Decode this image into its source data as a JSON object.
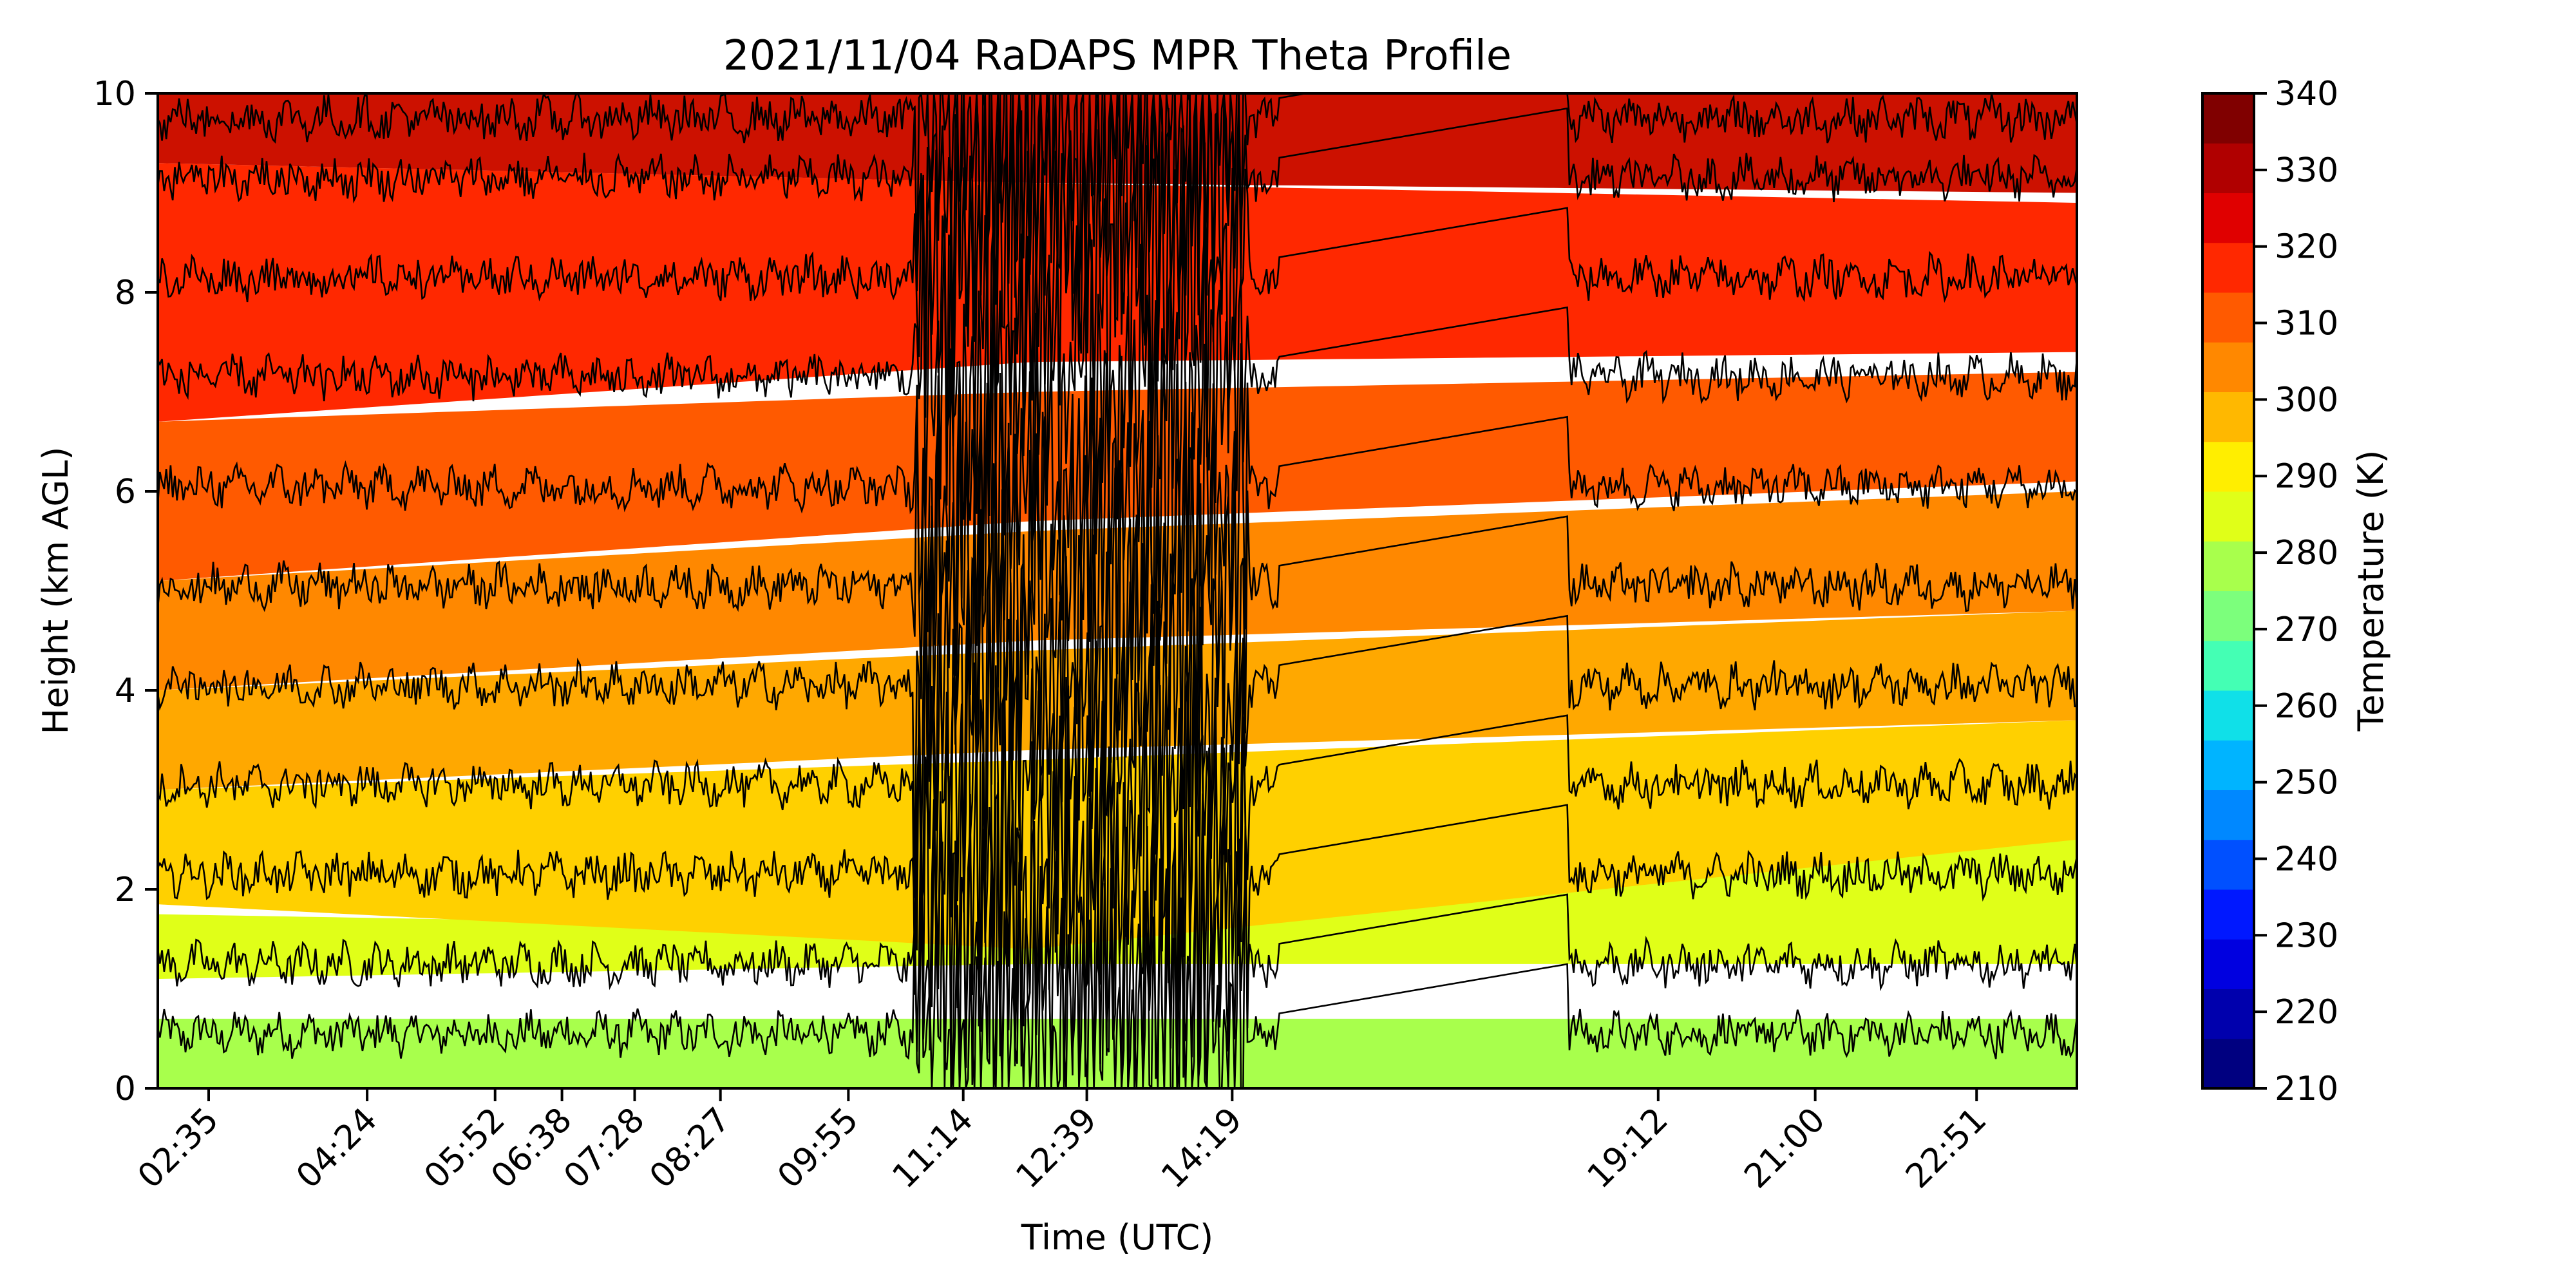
{
  "chart_data": {
    "type": "heatmap",
    "title": "2021/11/04 RaDAPS MPR Theta Profile",
    "xlabel": "Time (UTC)",
    "ylabel": "Height (km AGL)",
    "colorbar_label": "Temperature (K)",
    "xlim": [
      "02:00",
      "24:00"
    ],
    "ylim": [
      0,
      10
    ],
    "x_ticks": [
      "02:35",
      "04:24",
      "05:52",
      "06:38",
      "07:28",
      "08:27",
      "09:55",
      "11:14",
      "12:39",
      "14:19",
      "19:12",
      "21:00",
      "22:51"
    ],
    "y_ticks": [
      0,
      2,
      4,
      6,
      8,
      10
    ],
    "colorbar_range": [
      210,
      340
    ],
    "colorbar_ticks": [
      210,
      220,
      230,
      240,
      250,
      260,
      270,
      280,
      290,
      300,
      310,
      320,
      330,
      340
    ],
    "colorbar_colors": [
      "#000080",
      "#0000ad",
      "#0000e0",
      "#0018ff",
      "#0050ff",
      "#0088ff",
      "#00b4ff",
      "#10e0e8",
      "#44ffb4",
      "#7cff7c",
      "#a8ff4c",
      "#e0ff18",
      "#ffee00",
      "#ffb800",
      "#ff8800",
      "#ff5a00",
      "#ff2800",
      "#e00000",
      "#b00000",
      "#800000"
    ],
    "bands": [
      {
        "level": 285,
        "color": "#a8ff4c",
        "base": [
          0.0,
          0.0,
          0.0
        ],
        "top": [
          0.7,
          0.7,
          0.7
        ]
      },
      {
        "level": 290,
        "color": "#e0ff18",
        "base": [
          1.1,
          1.25,
          1.25
        ],
        "top": [
          1.75,
          1.6,
          2.7
        ]
      },
      {
        "level": 300,
        "color": "#ffd000",
        "base": [
          1.85,
          1.4,
          2.5
        ],
        "top": [
          3.0,
          3.3,
          3.7
        ]
      },
      {
        "level": 305,
        "color": "#ffa800",
        "base": [
          3.0,
          3.4,
          3.7
        ],
        "top": [
          4.0,
          4.4,
          4.8
        ]
      },
      {
        "level": 310,
        "color": "#ff8800",
        "base": [
          4.0,
          4.5,
          4.8
        ],
        "top": [
          5.1,
          5.6,
          6.0
        ]
      },
      {
        "level": 315,
        "color": "#ff5a00",
        "base": [
          5.1,
          5.7,
          6.1
        ],
        "top": [
          6.7,
          7.0,
          7.2
        ]
      },
      {
        "level": 320,
        "color": "#ff2800",
        "base": [
          6.7,
          7.3,
          7.4
        ],
        "top": [
          9.3,
          9.1,
          8.9
        ]
      },
      {
        "level": 330,
        "color": "#cc1100",
        "base": [
          9.3,
          9.1,
          9.0
        ],
        "top": [
          10.0,
          10.0,
          10.0
        ]
      }
    ],
    "contour_levels_km": [
      0.55,
      1.25,
      2.15,
      3.05,
      4.05,
      5.05,
      6.05,
      7.15,
      8.15,
      9.15,
      9.75
    ]
  }
}
